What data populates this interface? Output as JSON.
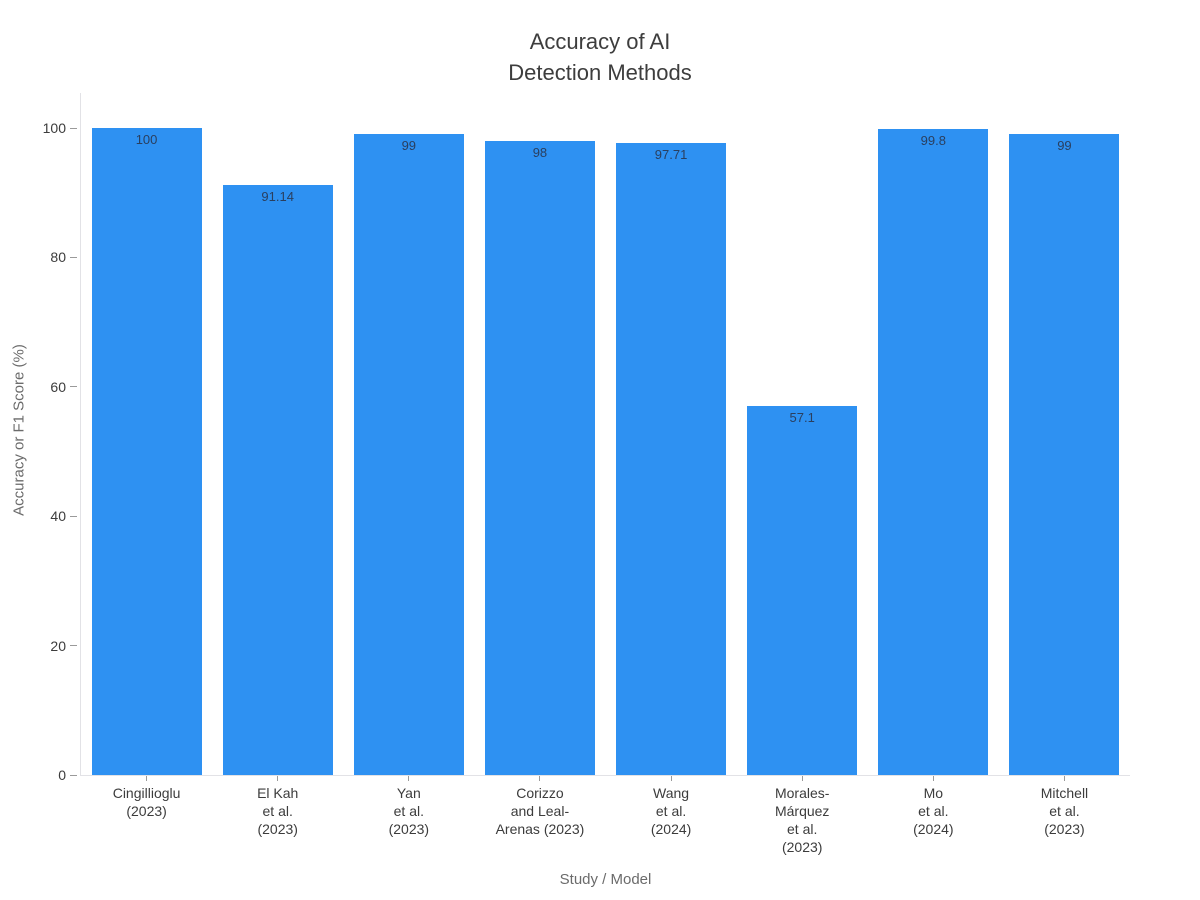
{
  "title": {
    "line1": "Accuracy of AI",
    "line2": "Detection Methods"
  },
  "axes": {
    "y_title": "Accuracy or F1 Score (%)",
    "x_title": "Study / Model",
    "y_ticks": [
      0,
      20,
      40,
      60,
      80,
      100
    ]
  },
  "chart_data": {
    "type": "bar",
    "title": "Accuracy of AI Detection Methods",
    "xlabel": "Study / Model",
    "ylabel": "Accuracy or F1 Score (%)",
    "categories": [
      "Cingillioglu (2023)",
      "El Kah et al. (2023)",
      "Yan et al. (2023)",
      "Corizzo and Leal-Arenas (2023)",
      "Wang et al. (2024)",
      "Morales-Márquez et al. (2023)",
      "Mo et al. (2024)",
      "Mitchell et al. (2023)"
    ],
    "category_label_lines": [
      [
        "Cingillioglu",
        "(2023)"
      ],
      [
        "El Kah",
        "et al.",
        "(2023)"
      ],
      [
        "Yan",
        "et al.",
        "(2023)"
      ],
      [
        "Corizzo",
        "and Leal-",
        "Arenas (2023)"
      ],
      [
        "Wang",
        "et al.",
        "(2024)"
      ],
      [
        "Morales-",
        "Márquez",
        "et al.",
        "(2023)"
      ],
      [
        "Mo",
        "et al.",
        "(2024)"
      ],
      [
        "Mitchell",
        "et al.",
        "(2023)"
      ]
    ],
    "values": [
      100,
      91.14,
      99,
      98,
      97.71,
      57.1,
      99.8,
      99
    ],
    "value_labels": [
      "100",
      "91.14",
      "99",
      "98",
      "97.71",
      "57.1",
      "99.8",
      "99"
    ],
    "yticks": [
      0,
      20,
      40,
      60,
      80,
      100
    ],
    "ylim": [
      0,
      105.4
    ],
    "grid": false,
    "legend": false,
    "bar_color": "#2e91f2",
    "value_label_color": "#2a3f5f"
  },
  "colors": {
    "background": "#ffffff",
    "bar": "#2e91f2",
    "title_text": "#3d3d3d",
    "tick_text": "#3c3c3c",
    "axis_title_text": "#6b6b6b",
    "axis_line": "#e2e2e6",
    "tick_mark": "#9a9a9a",
    "value_text": "#2a3f5f"
  }
}
